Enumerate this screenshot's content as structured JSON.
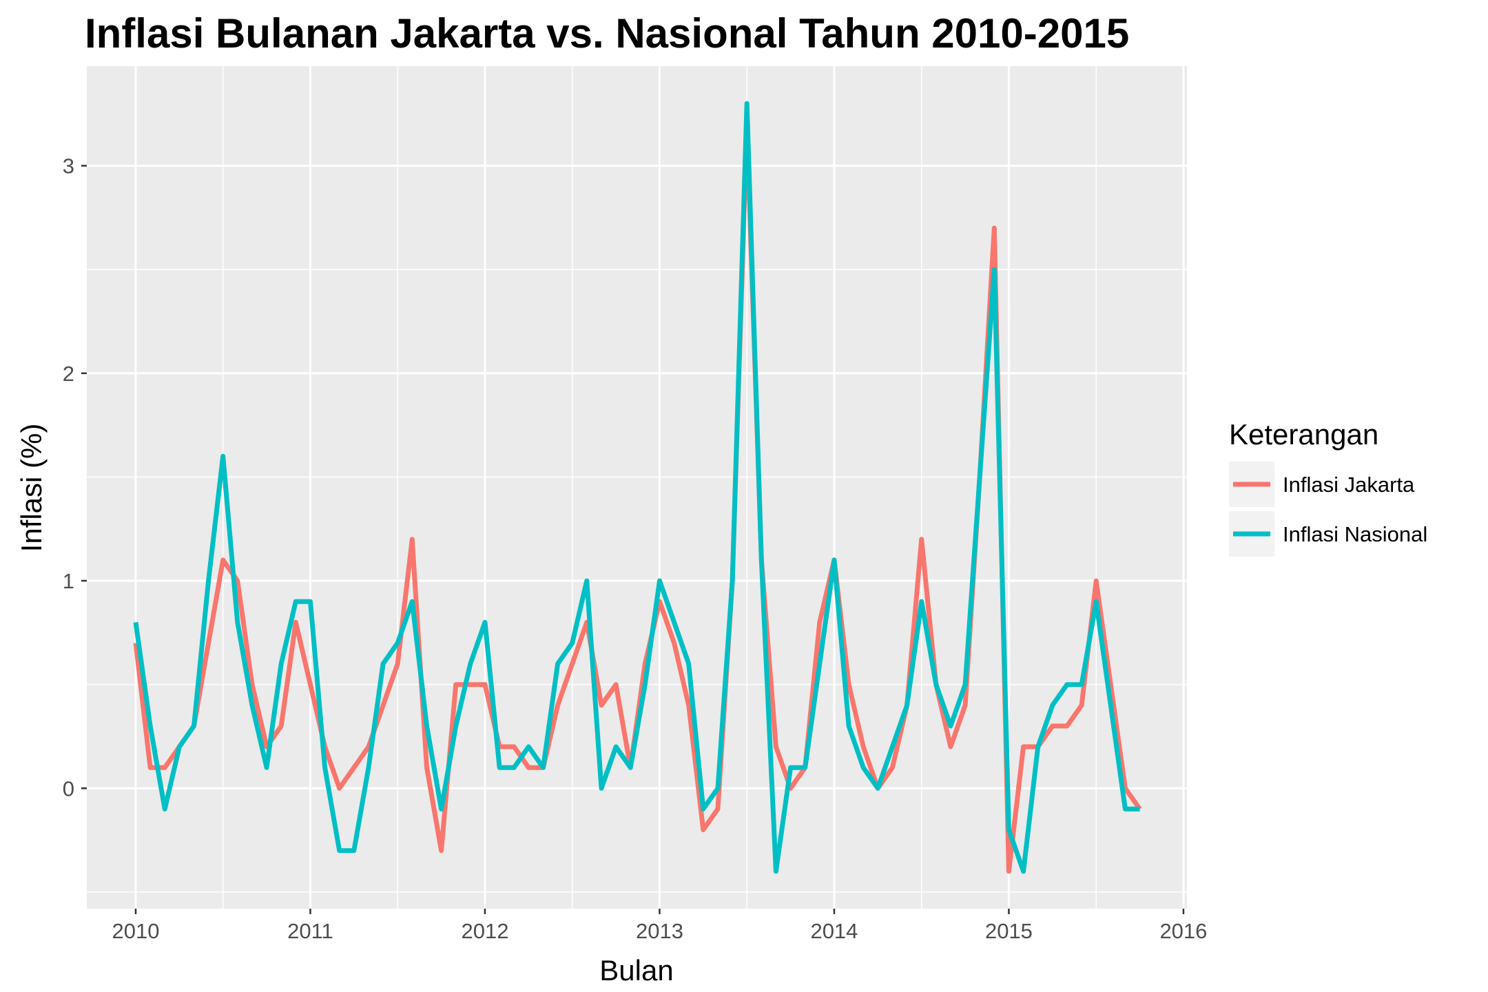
{
  "chart_data": {
    "type": "line",
    "title": "Inflasi Bulanan Jakarta vs. Nasional Tahun 2010-2015",
    "xlabel": "Bulan",
    "ylabel": "Inflasi (%)",
    "xlim": [
      2009.72,
      2016.02
    ],
    "ylim": [
      -0.58,
      3.48
    ],
    "x_ticks": [
      "2010",
      "2011",
      "2012",
      "2013",
      "2014",
      "2015",
      "2016"
    ],
    "y_ticks": [
      "0",
      "1",
      "2",
      "3"
    ],
    "grid": true,
    "legend": {
      "title": "Keterangan",
      "position": "right"
    },
    "x_start": "2010-01",
    "x_step": "1 month",
    "series": [
      {
        "name": "Inflasi Jakarta",
        "color": "#F8766D",
        "values": [
          0.7,
          0.1,
          0.1,
          0.2,
          0.3,
          0.7,
          1.1,
          1.0,
          0.5,
          0.2,
          0.3,
          0.8,
          0.5,
          0.2,
          0.0,
          0.1,
          0.2,
          0.4,
          0.6,
          1.2,
          0.1,
          -0.3,
          0.5,
          0.5,
          0.5,
          0.2,
          0.2,
          0.1,
          0.1,
          0.4,
          0.6,
          0.8,
          0.4,
          0.5,
          0.1,
          0.6,
          0.9,
          0.7,
          0.4,
          -0.2,
          -0.1,
          1.0,
          3.2,
          1.1,
          0.2,
          0.0,
          0.1,
          0.8,
          1.1,
          0.5,
          0.2,
          0.0,
          0.1,
          0.4,
          1.2,
          0.5,
          0.2,
          0.4,
          1.5,
          2.7,
          -0.4,
          0.2,
          0.2,
          0.3,
          0.3,
          0.4,
          1.0,
          0.5,
          0.0,
          -0.1
        ]
      },
      {
        "name": "Inflasi Nasional",
        "color": "#00BFC4",
        "values": [
          0.8,
          0.3,
          -0.1,
          0.2,
          0.3,
          1.0,
          1.6,
          0.8,
          0.4,
          0.1,
          0.6,
          0.9,
          0.9,
          0.1,
          -0.3,
          -0.3,
          0.1,
          0.6,
          0.7,
          0.9,
          0.3,
          -0.1,
          0.3,
          0.6,
          0.8,
          0.1,
          0.1,
          0.2,
          0.1,
          0.6,
          0.7,
          1.0,
          0.0,
          0.2,
          0.1,
          0.5,
          1.0,
          0.8,
          0.6,
          -0.1,
          0.0,
          1.0,
          3.3,
          1.1,
          -0.4,
          0.1,
          0.1,
          0.6,
          1.1,
          0.3,
          0.1,
          0.0,
          0.2,
          0.4,
          0.9,
          0.5,
          0.3,
          0.5,
          1.5,
          2.5,
          -0.2,
          -0.4,
          0.2,
          0.4,
          0.5,
          0.5,
          0.9,
          0.4,
          -0.1,
          -0.1
        ]
      }
    ]
  }
}
